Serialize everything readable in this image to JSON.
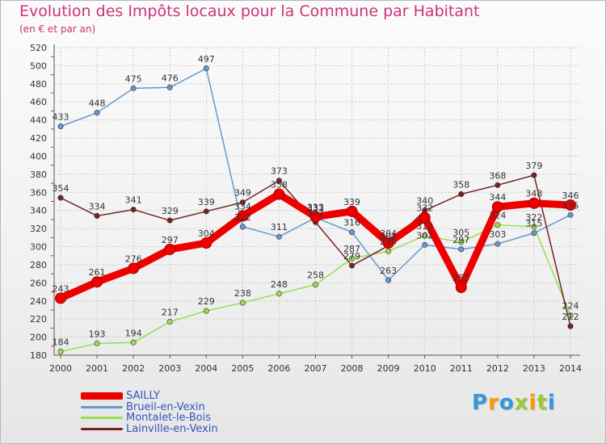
{
  "chart_data": {
    "type": "line",
    "title": "Evolution des Impôts locaux pour la Commune par Habitant",
    "subtitle": "(en € et par an)",
    "xlabel": "",
    "ylabel": "",
    "ylim": [
      180,
      520
    ],
    "y_ticks": [
      180,
      200,
      220,
      240,
      260,
      280,
      300,
      320,
      340,
      360,
      380,
      400,
      420,
      440,
      460,
      480,
      500,
      520
    ],
    "x": [
      "2000",
      "2001",
      "2002",
      "2003",
      "2004",
      "2005",
      "2006",
      "2007",
      "2008",
      "2009",
      "2010",
      "2011",
      "2012",
      "2013",
      "2014"
    ],
    "grid": true,
    "series": [
      {
        "name": "SAILLY",
        "color": "#ee0000",
        "values": [
          243,
          261,
          276,
          297,
          304,
          334,
          358,
          333,
          339,
          304,
          332,
          255,
          344,
          348,
          346
        ]
      },
      {
        "name": "Brueil-en-Vexin",
        "color": "#6699cc",
        "values": [
          433,
          448,
          475,
          476,
          497,
          322,
          311,
          332,
          316,
          263,
          302,
          297,
          303,
          315,
          335
        ]
      },
      {
        "name": "Montalet-le-Bois",
        "color": "#99dd55",
        "values": [
          184,
          193,
          194,
          217,
          229,
          238,
          248,
          258,
          287,
          295,
          312,
          305,
          324,
          322,
          224
        ]
      },
      {
        "name": "Lainville-en-Vexin",
        "color": "#772222",
        "values": [
          354,
          334,
          341,
          329,
          339,
          349,
          373,
          327,
          279,
          301,
          340,
          358,
          368,
          379,
          212
        ]
      }
    ],
    "labeled_points": [
      {
        "series": 0,
        "labels": [
          "243",
          "261",
          "276",
          "297",
          "304",
          "334",
          "358",
          "333",
          "339",
          "304",
          "332",
          "255",
          "344",
          "348",
          "346"
        ]
      },
      {
        "series": 1,
        "labels": [
          "433",
          "448",
          "475",
          "476",
          "497",
          "322",
          "311",
          "332",
          "316",
          "263",
          "302",
          "297",
          "303",
          "315",
          "335"
        ]
      },
      {
        "series": 2,
        "labels": [
          "184",
          "193",
          "194",
          "217",
          "229",
          "238",
          "248",
          "258",
          "287",
          "295",
          "312",
          "305",
          "324",
          "322",
          "224"
        ]
      },
      {
        "series": 3,
        "labels": [
          "354",
          "334",
          "341",
          "329",
          "339",
          "349",
          "373",
          "327",
          "279",
          "301",
          "340",
          "358",
          "368",
          "379",
          "212"
        ]
      }
    ]
  },
  "logo": {
    "letters": [
      "P",
      "r",
      "o",
      "x",
      "i",
      "t",
      "i"
    ],
    "colors": [
      "#3399dd",
      "#ff9900",
      "#3399dd",
      "#99cc33",
      "#ff9900",
      "#99cc33",
      "#3399dd"
    ]
  }
}
